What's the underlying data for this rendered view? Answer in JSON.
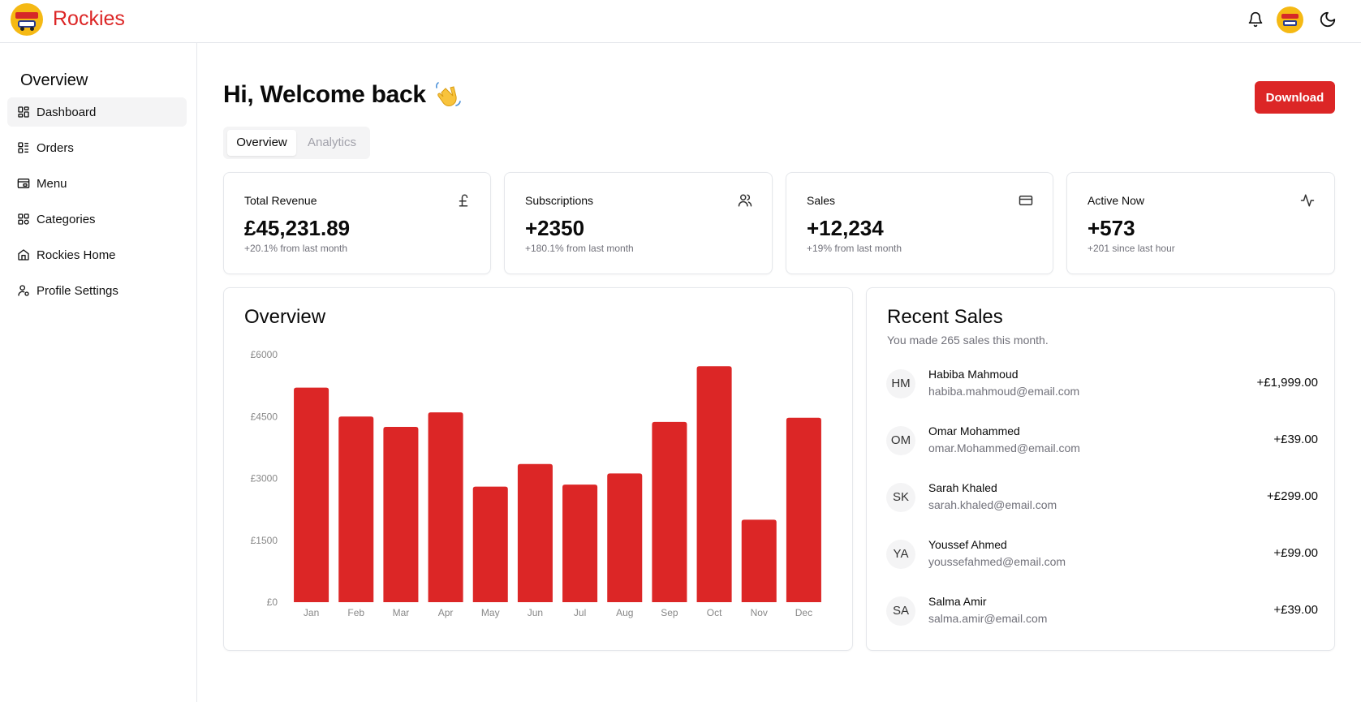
{
  "header": {
    "brand": "Rockies",
    "icons": [
      "logo-icon",
      "bell-icon",
      "avatar",
      "moon-icon"
    ]
  },
  "sidebar": {
    "title": "Overview",
    "items": [
      {
        "label": "Dashboard",
        "icon": "dashboard-icon",
        "active": true
      },
      {
        "label": "Orders",
        "icon": "orders-icon"
      },
      {
        "label": "Menu",
        "icon": "menu-icon"
      },
      {
        "label": "Categories",
        "icon": "categories-icon"
      },
      {
        "label": "Rockies Home",
        "icon": "home-icon"
      },
      {
        "label": "Profile Settings",
        "icon": "user-settings-icon"
      }
    ]
  },
  "main": {
    "welcome": "Hi, Welcome back",
    "download_label": "Download",
    "tabs": [
      {
        "label": "Overview",
        "active": true
      },
      {
        "label": "Analytics"
      }
    ],
    "stats": [
      {
        "label": "Total Revenue",
        "value": "£45,231.89",
        "sub": "+20.1% from last month",
        "icon": "pound-icon"
      },
      {
        "label": "Subscriptions",
        "value": "+2350",
        "sub": "+180.1% from last month",
        "icon": "users-icon"
      },
      {
        "label": "Sales",
        "value": "+12,234",
        "sub": "+19% from last month",
        "icon": "credit-card-icon"
      },
      {
        "label": "Active Now",
        "value": "+573",
        "sub": "+201 since last hour",
        "icon": "activity-icon"
      }
    ],
    "overview_title": "Overview",
    "recent": {
      "title": "Recent Sales",
      "subtitle": "You made 265 sales this month.",
      "rows": [
        {
          "initials": "HM",
          "name": "Habiba Mahmoud",
          "email": "habiba.mahmoud@email.com",
          "amount": "+£1,999.00"
        },
        {
          "initials": "OM",
          "name": "Omar Mohammed",
          "email": "omar.Mohammed@email.com",
          "amount": "+£39.00"
        },
        {
          "initials": "SK",
          "name": "Sarah Khaled",
          "email": "sarah.khaled@email.com",
          "amount": "+£299.00"
        },
        {
          "initials": "YA",
          "name": "Youssef Ahmed",
          "email": "youssefahmed@email.com",
          "amount": "+£99.00"
        },
        {
          "initials": "SA",
          "name": "Salma Amir",
          "email": "salma.amir@email.com",
          "amount": "+£39.00"
        }
      ]
    }
  },
  "colors": {
    "accent": "#dc2626",
    "muted": "#71717a",
    "border": "#e5e7eb"
  },
  "chart_data": {
    "type": "bar",
    "categories": [
      "Jan",
      "Feb",
      "Mar",
      "Apr",
      "May",
      "Jun",
      "Jul",
      "Aug",
      "Sep",
      "Oct",
      "Nov",
      "Dec"
    ],
    "values": [
      5200,
      4500,
      4250,
      4600,
      2800,
      3350,
      2850,
      3120,
      4370,
      5720,
      2000,
      4470
    ],
    "yticks": [
      0,
      1500,
      3000,
      4500,
      6000
    ],
    "ytick_labels": [
      "£0",
      "£1500",
      "£3000",
      "£4500",
      "£6000"
    ],
    "ylim": [
      0,
      6000
    ],
    "grid": false,
    "color": "#dc2626"
  }
}
